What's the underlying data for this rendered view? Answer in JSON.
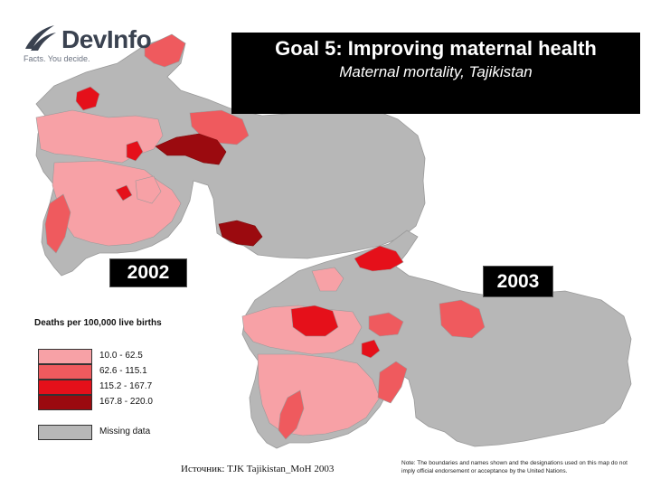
{
  "logo": {
    "name": "DevInfo",
    "tagline": "Facts. You decide."
  },
  "title": {
    "main": "Goal 5: Improving maternal health",
    "subtitle": "Maternal mortality, Tajikistan"
  },
  "years": {
    "first": "2002",
    "second": "2003"
  },
  "legend": {
    "title": "Deaths per 100,000 live births",
    "items": [
      {
        "label": "10.0 - 62.5",
        "color": "#f7a1a6"
      },
      {
        "label": "62.6 - 115.1",
        "color": "#ef5a5e"
      },
      {
        "label": "115.2 - 167.7",
        "color": "#e5101a"
      },
      {
        "label": "167.8 - 220.0",
        "color": "#9b0a0f"
      },
      {
        "label": "Missing data",
        "color": "#b7b7b7"
      }
    ]
  },
  "source": "Источник: TJK Tajikistan_MoH 2003",
  "note": "Note: The boundaries and names shown and the designations used on this map do not imply official endorsement or acceptance by the United Nations.",
  "colors": {
    "missing": "#b7b7b7",
    "low": "#f7a1a6",
    "mid": "#ef5a5e",
    "high": "#e5101a",
    "max": "#9b0a0f"
  }
}
